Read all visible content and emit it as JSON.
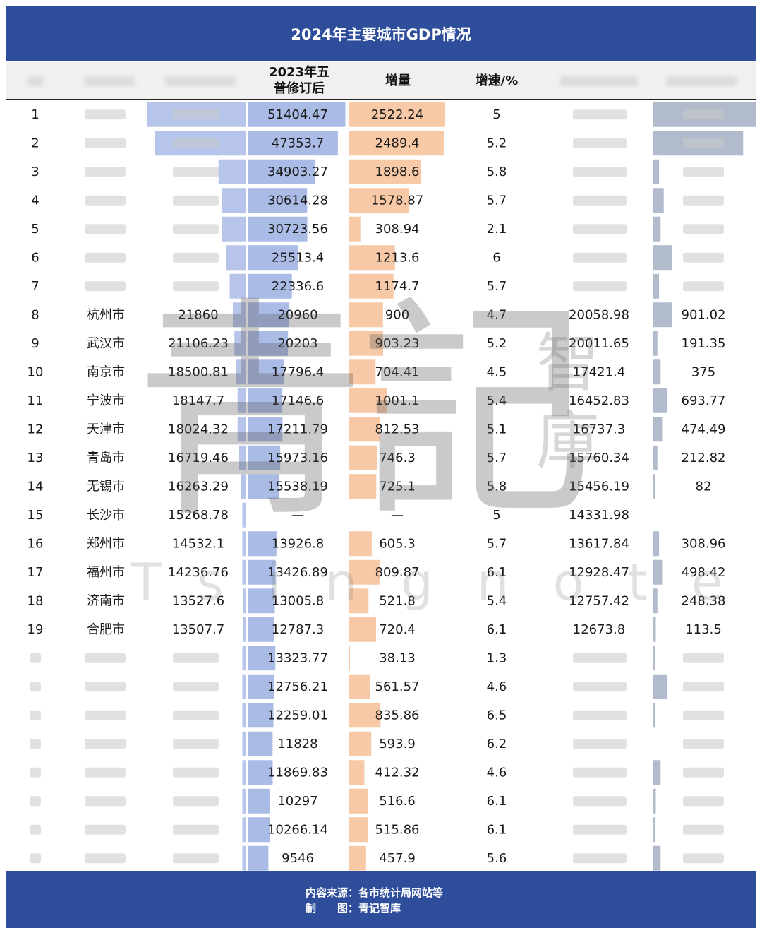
{
  "title": "2024年主要城市GDP情况",
  "headers": {
    "gdp2023": "2023年五普修订后",
    "increase": "增量",
    "growth": "增速/%"
  },
  "footer": {
    "source_label": "内容来源：",
    "source": "各市统计局网站等",
    "made_label": "制　　图：",
    "made": "青记智库"
  },
  "watermark": {
    "main": "青記",
    "side": "智庫",
    "latin": "Tsingnotes"
  },
  "colors": {
    "header": "#2e4e9c",
    "blue_bar": "#aabbe6",
    "orange_bar": "#f8c9a6",
    "gray_bar": "#a9b4c7"
  },
  "chart_data": {
    "type": "table",
    "title": "2024年主要城市GDP情况",
    "columns": [
      "rank",
      "city",
      "gdp2024",
      "gdp2023",
      "increase",
      "growth",
      "gdp_prev",
      "increase_prev"
    ],
    "rows": [
      {
        "rank": "1",
        "city": "",
        "gdp2024": "",
        "gdp2023": "51404.47",
        "increase": "2522.24",
        "growth": "5",
        "gdp_prev": "",
        "increase_prev": "",
        "bar2024": 0.62,
        "bar_prev": 0.65
      },
      {
        "rank": "2",
        "city": "",
        "gdp2024": "",
        "gdp2023": "47353.7",
        "increase": "2489.4",
        "growth": "5.2",
        "gdp_prev": "",
        "increase_prev": "",
        "bar2024": 0.57,
        "bar_prev": 0.57
      },
      {
        "rank": "3",
        "city": "",
        "gdp2024": "",
        "gdp2023": "34903.27",
        "increase": "1898.6",
        "growth": "5.8",
        "gdp_prev": "",
        "increase_prev": "",
        "bar2024": 0.17,
        "bar_prev": 0.04
      },
      {
        "rank": "4",
        "city": "",
        "gdp2024": "",
        "gdp2023": "30614.28",
        "increase": "1578.87",
        "growth": "5.7",
        "gdp_prev": "",
        "increase_prev": "",
        "bar2024": 0.15,
        "bar_prev": 0.07
      },
      {
        "rank": "5",
        "city": "",
        "gdp2024": "",
        "gdp2023": "30723.56",
        "increase": "308.94",
        "growth": "2.1",
        "gdp_prev": "",
        "increase_prev": "",
        "bar2024": 0.15,
        "bar_prev": 0.05
      },
      {
        "rank": "6",
        "city": "",
        "gdp2024": "",
        "gdp2023": "25513.4",
        "increase": "1213.6",
        "growth": "6",
        "gdp_prev": "",
        "increase_prev": "",
        "bar2024": 0.12,
        "bar_prev": 0.12
      },
      {
        "rank": "7",
        "city": "",
        "gdp2024": "",
        "gdp2023": "22336.6",
        "increase": "1174.7",
        "growth": "5.7",
        "gdp_prev": "",
        "increase_prev": "",
        "bar2024": 0.1,
        "bar_prev": 0.04
      },
      {
        "rank": "8",
        "city": "杭州市",
        "gdp2024": "21860",
        "gdp2023": "20960",
        "increase": "900",
        "growth": "4.7",
        "gdp_prev": "20058.98",
        "increase_prev": "901.02",
        "bar2024": 0.08,
        "bar_prev": 0.12
      },
      {
        "rank": "9",
        "city": "武汉市",
        "gdp2024": "21106.23",
        "gdp2023": "20203",
        "increase": "903.23",
        "growth": "5.2",
        "gdp_prev": "20011.65",
        "increase_prev": "191.35",
        "bar2024": 0.07,
        "bar_prev": 0.03
      },
      {
        "rank": "10",
        "city": "南京市",
        "gdp2024": "18500.81",
        "gdp2023": "17796.4",
        "increase": "704.41",
        "growth": "4.5",
        "gdp_prev": "17421.4",
        "increase_prev": "375",
        "bar2024": 0.06,
        "bar_prev": 0.05
      },
      {
        "rank": "11",
        "city": "宁波市",
        "gdp2024": "18147.7",
        "gdp2023": "17146.6",
        "increase": "1001.1",
        "growth": "5.4",
        "gdp_prev": "16452.83",
        "increase_prev": "693.77",
        "bar2024": 0.05,
        "bar_prev": 0.09
      },
      {
        "rank": "12",
        "city": "天津市",
        "gdp2024": "18024.32",
        "gdp2023": "17211.79",
        "increase": "812.53",
        "growth": "5.1",
        "gdp_prev": "16737.3",
        "increase_prev": "474.49",
        "bar2024": 0.05,
        "bar_prev": 0.06
      },
      {
        "rank": "13",
        "city": "青岛市",
        "gdp2024": "16719.46",
        "gdp2023": "15973.16",
        "increase": "746.3",
        "growth": "5.7",
        "gdp_prev": "15760.34",
        "increase_prev": "212.82",
        "bar2024": 0.04,
        "bar_prev": 0.03
      },
      {
        "rank": "14",
        "city": "无锡市",
        "gdp2024": "16263.29",
        "gdp2023": "15538.19",
        "increase": "725.1",
        "growth": "5.8",
        "gdp_prev": "15456.19",
        "increase_prev": "82",
        "bar2024": 0.03,
        "bar_prev": 0.01
      },
      {
        "rank": "15",
        "city": "长沙市",
        "gdp2024": "15268.78",
        "gdp2023": "—",
        "increase": "—",
        "growth": "5",
        "gdp_prev": "14331.98",
        "increase_prev": "",
        "bar2024": 0.02,
        "bar_prev": 0
      },
      {
        "rank": "16",
        "city": "郑州市",
        "gdp2024": "14532.1",
        "gdp2023": "13926.8",
        "increase": "605.3",
        "growth": "5.7",
        "gdp_prev": "13617.84",
        "increase_prev": "308.96",
        "bar2024": 0.02,
        "bar_prev": 0.04
      },
      {
        "rank": "17",
        "city": "福州市",
        "gdp2024": "14236.76",
        "gdp2023": "13426.89",
        "increase": "809.87",
        "growth": "6.1",
        "gdp_prev": "12928.47",
        "increase_prev": "498.42",
        "bar2024": 0.02,
        "bar_prev": 0.06
      },
      {
        "rank": "18",
        "city": "济南市",
        "gdp2024": "13527.6",
        "gdp2023": "13005.8",
        "increase": "521.8",
        "growth": "5.4",
        "gdp_prev": "12757.42",
        "increase_prev": "248.38",
        "bar2024": 0.01,
        "bar_prev": 0.03
      },
      {
        "rank": "19",
        "city": "合肥市",
        "gdp2024": "13507.7",
        "gdp2023": "12787.3",
        "increase": "720.4",
        "growth": "6.1",
        "gdp_prev": "12673.8",
        "increase_prev": "113.5",
        "bar2024": 0.01,
        "bar_prev": 0.02
      },
      {
        "rank": "",
        "city": "",
        "gdp2024": "",
        "gdp2023": "13323.77",
        "increase": "38.13",
        "growth": "1.3",
        "gdp_prev": "",
        "increase_prev": "",
        "bar2024": 0.02,
        "bar_prev": 0.01
      },
      {
        "rank": "",
        "city": "",
        "gdp2024": "",
        "gdp2023": "12756.21",
        "increase": "561.57",
        "growth": "4.6",
        "gdp_prev": "",
        "increase_prev": "",
        "bar2024": 0.02,
        "bar_prev": 0.09
      },
      {
        "rank": "",
        "city": "",
        "gdp2024": "",
        "gdp2023": "12259.01",
        "increase": "835.86",
        "growth": "6.5",
        "gdp_prev": "",
        "increase_prev": "",
        "bar2024": 0.02,
        "bar_prev": 0.01
      },
      {
        "rank": "",
        "city": "",
        "gdp2024": "",
        "gdp2023": "11828",
        "increase": "593.9",
        "growth": "6.2",
        "gdp_prev": "",
        "increase_prev": "",
        "bar2024": 0.02,
        "bar_prev": 0
      },
      {
        "rank": "",
        "city": "",
        "gdp2024": "",
        "gdp2023": "11869.83",
        "increase": "412.32",
        "growth": "4.6",
        "gdp_prev": "",
        "increase_prev": "",
        "bar2024": 0.02,
        "bar_prev": 0.05
      },
      {
        "rank": "",
        "city": "",
        "gdp2024": "",
        "gdp2023": "10297",
        "increase": "516.6",
        "growth": "6.1",
        "gdp_prev": "",
        "increase_prev": "",
        "bar2024": 0.02,
        "bar_prev": 0.02
      },
      {
        "rank": "",
        "city": "",
        "gdp2024": "",
        "gdp2023": "10266.14",
        "increase": "515.86",
        "growth": "6.1",
        "gdp_prev": "",
        "increase_prev": "",
        "bar2024": 0.02,
        "bar_prev": 0.01
      },
      {
        "rank": "",
        "city": "",
        "gdp2024": "",
        "gdp2023": "9546",
        "increase": "457.9",
        "growth": "5.6",
        "gdp_prev": "",
        "increase_prev": "",
        "bar2024": 0.02,
        "bar_prev": 0.05
      }
    ]
  }
}
